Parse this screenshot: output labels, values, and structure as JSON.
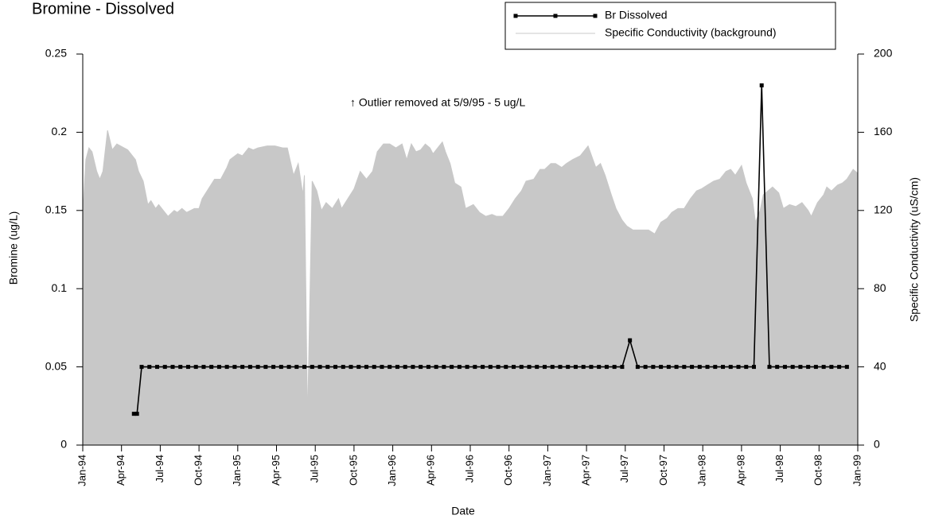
{
  "chart_data": {
    "type": "line",
    "title": "Bromine - Dissolved",
    "x_label": "Date",
    "y_label": "Bromine (ug/L)",
    "y2_label": "Specific Conductivity (uS/cm)",
    "annotations": [
      {
        "text": "↑ Outlier removed at 5/9/95 - 5 ug/L"
      }
    ],
    "legend": "top-right",
    "xlim": [
      1994,
      1999
    ],
    "xticks": [
      {
        "value": 1994,
        "label": "Jan-94"
      },
      {
        "value": 1994.25,
        "label": "Apr-94"
      },
      {
        "value": 1994.5,
        "label": "Jul-94"
      },
      {
        "value": 1994.75,
        "label": "Oct-94"
      },
      {
        "value": 1995,
        "label": "Jan-95"
      },
      {
        "value": 1995.25,
        "label": "Apr-95"
      },
      {
        "value": 1995.5,
        "label": "Jul-95"
      },
      {
        "value": 1995.75,
        "label": "Oct-95"
      },
      {
        "value": 1996,
        "label": "Jan-96"
      },
      {
        "value": 1996.25,
        "label": "Apr-96"
      },
      {
        "value": 1996.5,
        "label": "Jul-96"
      },
      {
        "value": 1996.75,
        "label": "Oct-96"
      },
      {
        "value": 1997,
        "label": "Jan-97"
      },
      {
        "value": 1997.25,
        "label": "Apr-97"
      },
      {
        "value": 1997.5,
        "label": "Jul-97"
      },
      {
        "value": 1997.75,
        "label": "Oct-97"
      },
      {
        "value": 1998,
        "label": "Jan-98"
      },
      {
        "value": 1998.25,
        "label": "Apr-98"
      },
      {
        "value": 1998.5,
        "label": "Jul-98"
      },
      {
        "value": 1998.75,
        "label": "Oct-98"
      },
      {
        "value": 1999,
        "label": "Jan-99"
      }
    ],
    "ylim": [
      0,
      0.25
    ],
    "yticks": [
      0,
      0.05,
      0.1,
      0.15,
      0.2,
      0.25
    ],
    "y2lim": [
      0,
      200
    ],
    "y2ticks": [
      0,
      40,
      80,
      120,
      160,
      200
    ],
    "series": [
      {
        "name": "Br Dissolved",
        "color": "#000000",
        "markers": true,
        "x": [
          1994.33,
          1994.35,
          1994.38,
          1994.43,
          1994.48,
          1994.53,
          1994.58,
          1994.63,
          1994.68,
          1994.73,
          1994.78,
          1994.83,
          1994.88,
          1994.93,
          1994.98,
          1995.03,
          1995.08,
          1995.13,
          1995.18,
          1995.23,
          1995.28,
          1995.33,
          1995.38,
          1995.43,
          1995.48,
          1995.53,
          1995.58,
          1995.63,
          1995.68,
          1995.73,
          1995.78,
          1995.83,
          1995.88,
          1995.93,
          1995.98,
          1996.03,
          1996.08,
          1996.13,
          1996.18,
          1996.23,
          1996.28,
          1996.33,
          1996.38,
          1996.43,
          1996.48,
          1996.53,
          1996.58,
          1996.63,
          1996.68,
          1996.73,
          1996.78,
          1996.83,
          1996.88,
          1996.93,
          1996.98,
          1997.03,
          1997.08,
          1997.13,
          1997.18,
          1997.23,
          1997.28,
          1997.33,
          1997.38,
          1997.43,
          1997.48,
          1997.53,
          1997.58,
          1997.63,
          1997.68,
          1997.73,
          1997.78,
          1997.83,
          1997.88,
          1997.93,
          1997.98,
          1998.03,
          1998.08,
          1998.13,
          1998.18,
          1998.23,
          1998.28,
          1998.33,
          1998.38,
          1998.43,
          1998.48,
          1998.53,
          1998.58,
          1998.63,
          1998.68,
          1998.73,
          1998.78,
          1998.83,
          1998.88,
          1998.93
        ],
        "values": [
          0.02,
          0.02,
          0.05,
          0.05,
          0.05,
          0.05,
          0.05,
          0.05,
          0.05,
          0.05,
          0.05,
          0.05,
          0.05,
          0.05,
          0.05,
          0.05,
          0.05,
          0.05,
          0.05,
          0.05,
          0.05,
          0.05,
          0.05,
          0.05,
          0.05,
          0.05,
          0.05,
          0.05,
          0.05,
          0.05,
          0.05,
          0.05,
          0.05,
          0.05,
          0.05,
          0.05,
          0.05,
          0.05,
          0.05,
          0.05,
          0.05,
          0.05,
          0.05,
          0.05,
          0.05,
          0.05,
          0.05,
          0.05,
          0.05,
          0.05,
          0.05,
          0.05,
          0.05,
          0.05,
          0.05,
          0.05,
          0.05,
          0.05,
          0.05,
          0.05,
          0.05,
          0.05,
          0.05,
          0.05,
          0.05,
          0.067,
          0.05,
          0.05,
          0.05,
          0.05,
          0.05,
          0.05,
          0.05,
          0.05,
          0.05,
          0.05,
          0.05,
          0.05,
          0.05,
          0.05,
          0.05,
          0.05,
          0.23,
          0.05,
          0.05,
          0.05,
          0.05,
          0.05,
          0.05,
          0.05,
          0.05,
          0.05,
          0.05,
          0.05
        ]
      },
      {
        "name": "Specific Conductivity (background)",
        "color": "#c8c8c8",
        "axis": "y2",
        "fill": true,
        "x": [
          1994.0,
          1994.02,
          1994.04,
          1994.06,
          1994.09,
          1994.11,
          1994.13,
          1994.16,
          1994.19,
          1994.22,
          1994.29,
          1994.34,
          1994.36,
          1994.39,
          1994.42,
          1994.44,
          1994.47,
          1994.49,
          1994.52,
          1994.55,
          1994.59,
          1994.61,
          1994.64,
          1994.67,
          1994.72,
          1994.75,
          1994.77,
          1994.81,
          1994.85,
          1994.89,
          1994.93,
          1994.95,
          1995.0,
          1995.03,
          1995.07,
          1995.1,
          1995.13,
          1995.19,
          1995.24,
          1995.29,
          1995.32,
          1995.36,
          1995.39,
          1995.42,
          1995.43,
          1995.45,
          1995.48,
          1995.51,
          1995.54,
          1995.57,
          1995.61,
          1995.65,
          1995.67,
          1995.71,
          1995.75,
          1995.79,
          1995.83,
          1995.87,
          1995.9,
          1995.94,
          1995.98,
          1996.02,
          1996.06,
          1996.09,
          1996.12,
          1996.15,
          1996.18,
          1996.21,
          1996.24,
          1996.26,
          1996.29,
          1996.32,
          1996.34,
          1996.37,
          1996.4,
          1996.44,
          1996.47,
          1996.52,
          1996.56,
          1996.6,
          1996.64,
          1996.67,
          1996.71,
          1996.75,
          1996.79,
          1996.83,
          1996.86,
          1996.91,
          1996.95,
          1996.98,
          1997.02,
          1997.05,
          1997.09,
          1997.12,
          1997.16,
          1997.21,
          1997.26,
          1997.31,
          1997.34,
          1997.37,
          1997.41,
          1997.44,
          1997.48,
          1997.51,
          1997.55,
          1997.6,
          1997.65,
          1997.69,
          1997.73,
          1997.77,
          1997.8,
          1997.84,
          1997.88,
          1997.92,
          1997.96,
          1997.99,
          1998.03,
          1998.07,
          1998.11,
          1998.15,
          1998.18,
          1998.21,
          1998.25,
          1998.28,
          1998.32,
          1998.34,
          1998.37,
          1998.39,
          1998.42,
          1998.45,
          1998.49,
          1998.52,
          1998.56,
          1998.6,
          1998.64,
          1998.68,
          1998.7,
          1998.74,
          1998.78,
          1998.8,
          1998.83,
          1998.87,
          1998.9,
          1998.93,
          1998.97,
          1999.0
        ],
        "values": [
          118,
          146,
          152,
          150,
          140,
          136,
          140,
          161,
          151,
          154,
          151,
          146,
          140,
          135,
          123,
          125,
          121,
          123,
          120,
          117,
          120,
          119,
          121,
          119,
          121,
          121,
          126,
          131,
          136,
          136,
          142,
          146,
          149,
          148,
          152,
          151,
          152,
          153,
          153,
          152,
          152,
          138,
          144,
          128,
          138,
          12,
          135,
          130,
          120,
          124,
          121,
          126,
          121,
          126,
          131,
          140,
          136,
          140,
          150,
          154,
          154,
          152,
          154,
          146,
          154,
          150,
          151,
          154,
          152,
          149,
          152,
          155,
          150,
          144,
          134,
          132,
          121,
          123,
          119,
          117,
          118,
          117,
          117,
          121,
          126,
          130,
          135,
          136,
          141,
          141,
          144,
          144,
          142,
          144,
          146,
          148,
          153,
          142,
          144,
          138,
          128,
          121,
          115,
          112,
          110,
          110,
          110,
          108,
          114,
          116,
          119,
          121,
          121,
          126,
          130,
          131,
          133,
          135,
          136,
          140,
          141,
          138,
          143,
          134,
          126,
          114,
          120,
          128,
          130,
          132,
          129,
          121,
          123,
          122,
          124,
          120,
          117,
          124,
          128,
          132,
          130,
          133,
          134,
          136,
          141,
          139
        ]
      }
    ]
  }
}
